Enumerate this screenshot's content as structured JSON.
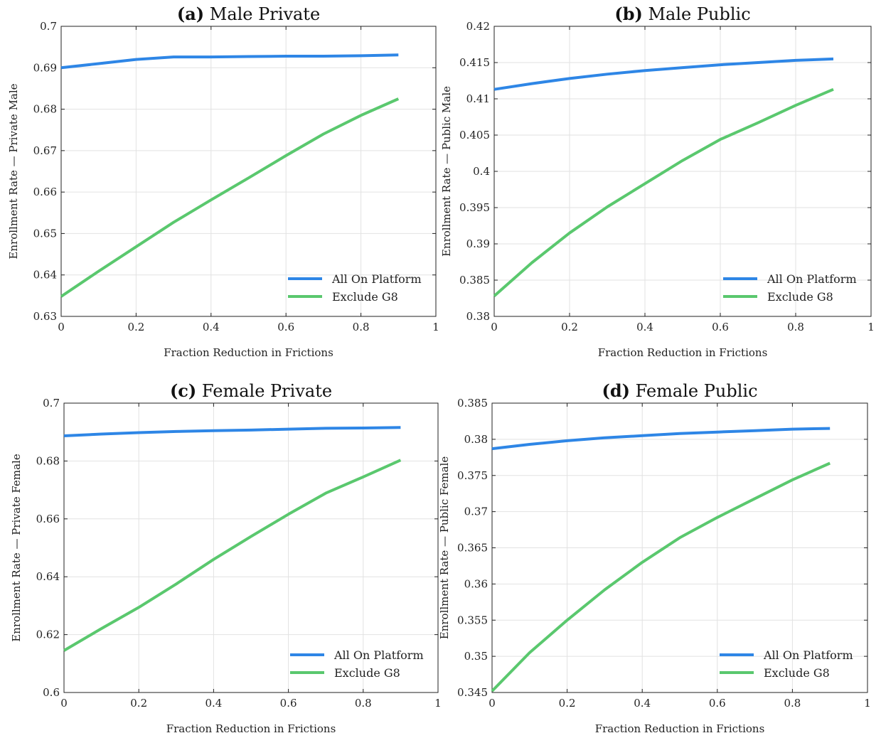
{
  "chart_data": [
    {
      "type": "line",
      "title_tag": "(a)",
      "title": "Male Private",
      "xlabel": "Fraction Reduction in Frictions",
      "ylabel": "Enrollment Rate — Private Male",
      "xlim": [
        0,
        1
      ],
      "ylim": [
        0.63,
        0.7
      ],
      "xticks": [
        0,
        0.2,
        0.4,
        0.6,
        0.8,
        1
      ],
      "xtick_labels": [
        "0",
        "0.2",
        "0.4",
        "0.6",
        "0.8",
        "1"
      ],
      "yticks": [
        0.63,
        0.64,
        0.65,
        0.66,
        0.67,
        0.68,
        0.69,
        0.7
      ],
      "ytick_labels": [
        "0.63",
        "0.64",
        "0.65",
        "0.66",
        "0.67",
        "0.68",
        "0.69",
        "0.7"
      ],
      "grid": true,
      "legend_position": "bottom-right",
      "x": [
        0,
        0.1,
        0.2,
        0.3,
        0.4,
        0.5,
        0.6,
        0.7,
        0.8,
        0.9
      ],
      "series": [
        {
          "name": "All On Platform",
          "color": "#2e86e6",
          "values": [
            0.69,
            0.691,
            0.692,
            0.6926,
            0.6926,
            0.6927,
            0.6928,
            0.6928,
            0.6929,
            0.6931
          ]
        },
        {
          "name": "Exclude G8",
          "color": "#5ac86e",
          "values": [
            0.6348,
            0.6409,
            0.6468,
            0.6527,
            0.6581,
            0.6634,
            0.6688,
            0.674,
            0.6785,
            0.6825
          ]
        }
      ]
    },
    {
      "type": "line",
      "title_tag": "(b)",
      "title": "Male Public",
      "xlabel": "Fraction Reduction in Frictions",
      "ylabel": "Enrollment Rate — Public Male",
      "xlim": [
        0,
        1
      ],
      "ylim": [
        0.38,
        0.42
      ],
      "xticks": [
        0,
        0.2,
        0.4,
        0.6,
        0.8,
        1
      ],
      "xtick_labels": [
        "0",
        "0.2",
        "0.4",
        "0.6",
        "0.8",
        "1"
      ],
      "yticks": [
        0.38,
        0.385,
        0.39,
        0.395,
        0.4,
        0.405,
        0.41,
        0.415,
        0.42
      ],
      "ytick_labels": [
        "0.38",
        "0.385",
        "0.39",
        "0.395",
        "0.4",
        "0.405",
        "0.41",
        "0.415",
        "0.42"
      ],
      "grid": true,
      "legend_position": "bottom-right",
      "x": [
        0,
        0.1,
        0.2,
        0.3,
        0.4,
        0.5,
        0.6,
        0.7,
        0.8,
        0.9
      ],
      "series": [
        {
          "name": "All On Platform",
          "color": "#2e86e6",
          "values": [
            0.4113,
            0.4121,
            0.4128,
            0.4134,
            0.4139,
            0.4143,
            0.4147,
            0.415,
            0.4153,
            0.4155
          ]
        },
        {
          "name": "Exclude G8",
          "color": "#5ac86e",
          "values": [
            0.3828,
            0.3874,
            0.3915,
            0.3951,
            0.3983,
            0.4015,
            0.4044,
            0.4067,
            0.4091,
            0.4113
          ]
        }
      ]
    },
    {
      "type": "line",
      "title_tag": "(c)",
      "title": "Female Private",
      "xlabel": "Fraction Reduction in Frictions",
      "ylabel": "Enrollment Rate — Private Female",
      "xlim": [
        0,
        1
      ],
      "ylim": [
        0.6,
        0.7
      ],
      "xticks": [
        0,
        0.2,
        0.4,
        0.6,
        0.8,
        1
      ],
      "xtick_labels": [
        "0",
        "0.2",
        "0.4",
        "0.6",
        "0.8",
        "1"
      ],
      "yticks": [
        0.6,
        0.62,
        0.64,
        0.66,
        0.68,
        0.7
      ],
      "ytick_labels": [
        "0.6",
        "0.62",
        "0.64",
        "0.66",
        "0.68",
        "0.7"
      ],
      "grid": true,
      "legend_position": "bottom-right",
      "x": [
        0,
        0.1,
        0.2,
        0.3,
        0.4,
        0.5,
        0.6,
        0.7,
        0.8,
        0.9
      ],
      "series": [
        {
          "name": "All On Platform",
          "color": "#2e86e6",
          "values": [
            0.6887,
            0.6893,
            0.6898,
            0.6902,
            0.6905,
            0.6907,
            0.691,
            0.6913,
            0.6914,
            0.6916
          ]
        },
        {
          "name": "Exclude G8",
          "color": "#5ac86e",
          "values": [
            0.6145,
            0.6221,
            0.6294,
            0.6375,
            0.646,
            0.6539,
            0.6616,
            0.6689,
            0.6745,
            0.6803
          ]
        }
      ]
    },
    {
      "type": "line",
      "title_tag": "(d)",
      "title": "Female Public",
      "xlabel": "Fraction Reduction in Frictions",
      "ylabel": "Enrollment Rate — Public Female",
      "xlim": [
        0,
        1
      ],
      "ylim": [
        0.345,
        0.385
      ],
      "xticks": [
        0,
        0.2,
        0.4,
        0.6,
        0.8,
        1
      ],
      "xtick_labels": [
        "0",
        "0.2",
        "0.4",
        "0.6",
        "0.8",
        "1"
      ],
      "yticks": [
        0.345,
        0.35,
        0.355,
        0.36,
        0.365,
        0.37,
        0.375,
        0.38,
        0.385
      ],
      "ytick_labels": [
        "0.345",
        "0.35",
        "0.355",
        "0.36",
        "0.365",
        "0.37",
        "0.375",
        "0.38",
        "0.385"
      ],
      "grid": true,
      "legend_position": "bottom-right",
      "x": [
        0,
        0.1,
        0.2,
        0.3,
        0.4,
        0.5,
        0.6,
        0.7,
        0.8,
        0.9
      ],
      "series": [
        {
          "name": "All On Platform",
          "color": "#2e86e6",
          "values": [
            0.3787,
            0.3793,
            0.3798,
            0.3802,
            0.3805,
            0.3808,
            0.381,
            0.3812,
            0.3814,
            0.3815
          ]
        },
        {
          "name": "Exclude G8",
          "color": "#5ac86e",
          "values": [
            0.3452,
            0.3505,
            0.355,
            0.3592,
            0.363,
            0.3664,
            0.3692,
            0.3718,
            0.3744,
            0.3767
          ]
        }
      ]
    }
  ]
}
